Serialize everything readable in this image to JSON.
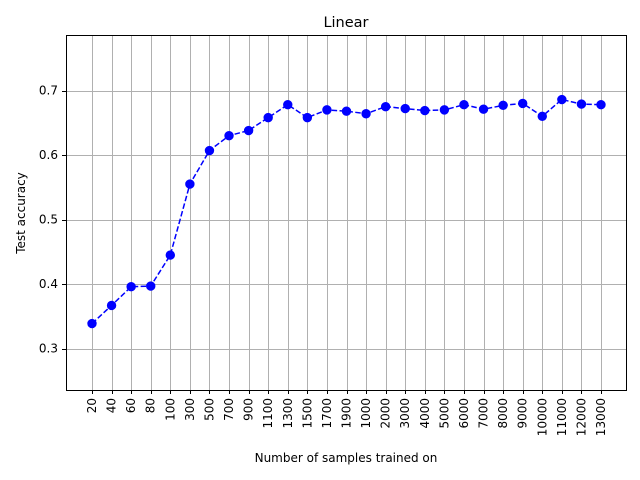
{
  "chart_data": {
    "type": "line",
    "title": "Linear",
    "xlabel": "Number of samples trained on",
    "ylabel": "Test accuracy",
    "categories": [
      "20",
      "40",
      "60",
      "80",
      "100",
      "300",
      "500",
      "700",
      "900",
      "1100",
      "1300",
      "1500",
      "1700",
      "1900",
      "1000",
      "2000",
      "3000",
      "4000",
      "5000",
      "6000",
      "7000",
      "8000",
      "9000",
      "10000",
      "11000",
      "12000",
      "13000"
    ],
    "series": [
      {
        "values": [
          0.339,
          0.367,
          0.396,
          0.397,
          0.445,
          0.555,
          0.607,
          0.63,
          0.638,
          0.658,
          0.678,
          0.658,
          0.67,
          0.668,
          0.664,
          0.675,
          0.672,
          0.669,
          0.67,
          0.678,
          0.671,
          0.677,
          0.68,
          0.66,
          0.686,
          0.679,
          0.678
        ],
        "color": "#0000ff",
        "line_style": "dashed",
        "marker": "circle"
      }
    ],
    "yticks": [
      0.3,
      0.4,
      0.5,
      0.6,
      0.7
    ],
    "ylim": [
      0.236,
      0.786
    ],
    "grid": true
  }
}
